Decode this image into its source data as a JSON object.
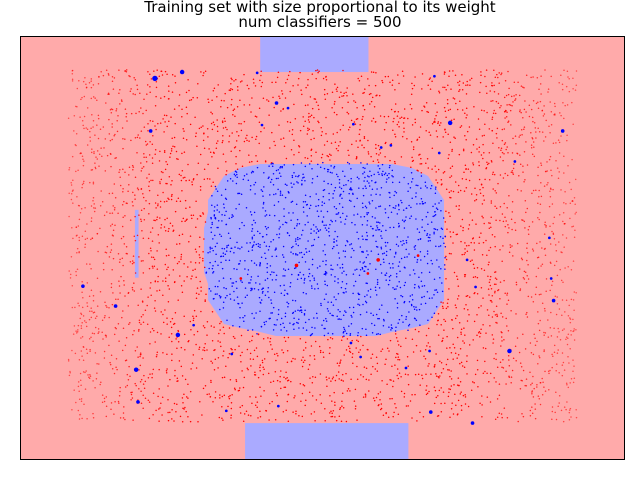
{
  "chart_data": {
    "type": "scatter",
    "title": "Training set with size proportional to its weight",
    "subtitle": "num classifiers = 500",
    "xlabel": "",
    "ylabel": "",
    "xlim": [
      0,
      1
    ],
    "ylim": [
      0,
      1
    ],
    "axes_visible": false,
    "grid": false,
    "legend": "none",
    "colors": {
      "background_class_red": "#ffaaaa",
      "background_class_blue": "#aaaaff",
      "point_red": "#ff0000",
      "point_blue": "#0000ff",
      "axes_frame": "#000000"
    },
    "decision_regions": [
      {
        "class": "blue",
        "shape": "rect",
        "x0": 0.397,
        "x1": 0.576,
        "y0": 0.915,
        "y1": 1.0
      },
      {
        "class": "blue",
        "shape": "rect",
        "x0": 0.372,
        "x1": 0.642,
        "y0": 0.0,
        "y1": 0.087
      },
      {
        "class": "blue",
        "shape": "blob",
        "cx": 0.505,
        "cy": 0.497,
        "rx": 0.198,
        "ry": 0.205
      },
      {
        "class": "blue",
        "shape": "rect",
        "x0": 0.19,
        "x1": 0.196,
        "y0": 0.43,
        "y1": 0.59
      }
    ],
    "series": [
      {
        "class": "red",
        "distribution": "uniform outside blue blob",
        "n_points": 3000,
        "seed": 7,
        "x_range": [
          0.08,
          0.92
        ],
        "y_range": [
          0.09,
          0.92
        ],
        "highlighted_points": [
          {
            "x": 0.457,
            "y": 0.459,
            "w": 4
          },
          {
            "x": 0.592,
            "y": 0.472,
            "w": 4
          },
          {
            "x": 0.575,
            "y": 0.44,
            "w": 3
          },
          {
            "x": 0.658,
            "y": 0.482,
            "w": 3
          },
          {
            "x": 0.365,
            "y": 0.428,
            "w": 3
          }
        ]
      },
      {
        "class": "blue",
        "distribution": "uniform inside blue blob",
        "n_points": 1200,
        "seed": 11,
        "highlighted_points": [
          {
            "x": 0.223,
            "y": 0.9,
            "w": 6
          },
          {
            "x": 0.268,
            "y": 0.915,
            "w": 5
          },
          {
            "x": 0.216,
            "y": 0.776,
            "w": 4
          },
          {
            "x": 0.711,
            "y": 0.795,
            "w": 5
          },
          {
            "x": 0.897,
            "y": 0.776,
            "w": 4
          },
          {
            "x": 0.424,
            "y": 0.842,
            "w": 4
          },
          {
            "x": 0.443,
            "y": 0.83,
            "w": 3
          },
          {
            "x": 0.685,
            "y": 0.905,
            "w": 3
          },
          {
            "x": 0.693,
            "y": 0.724,
            "w": 3
          },
          {
            "x": 0.818,
            "y": 0.704,
            "w": 3
          },
          {
            "x": 0.613,
            "y": 0.742,
            "w": 3
          },
          {
            "x": 0.597,
            "y": 0.737,
            "w": 3
          },
          {
            "x": 0.104,
            "y": 0.41,
            "w": 4
          },
          {
            "x": 0.158,
            "y": 0.363,
            "w": 4
          },
          {
            "x": 0.261,
            "y": 0.295,
            "w": 5
          },
          {
            "x": 0.287,
            "y": 0.318,
            "w": 3
          },
          {
            "x": 0.809,
            "y": 0.257,
            "w": 5
          },
          {
            "x": 0.192,
            "y": 0.213,
            "w": 5
          },
          {
            "x": 0.195,
            "y": 0.137,
            "w": 4
          },
          {
            "x": 0.882,
            "y": 0.376,
            "w": 4
          },
          {
            "x": 0.878,
            "y": 0.428,
            "w": 3
          },
          {
            "x": 0.875,
            "y": 0.524,
            "w": 3
          },
          {
            "x": 0.739,
            "y": 0.472,
            "w": 3
          },
          {
            "x": 0.753,
            "y": 0.408,
            "w": 3
          },
          {
            "x": 0.677,
            "y": 0.257,
            "w": 3
          },
          {
            "x": 0.638,
            "y": 0.217,
            "w": 3
          },
          {
            "x": 0.679,
            "y": 0.113,
            "w": 4
          },
          {
            "x": 0.748,
            "y": 0.087,
            "w": 4
          },
          {
            "x": 0.341,
            "y": 0.116,
            "w": 3
          },
          {
            "x": 0.427,
            "y": 0.127,
            "w": 3
          },
          {
            "x": 0.35,
            "y": 0.25,
            "w": 3
          },
          {
            "x": 0.547,
            "y": 0.276,
            "w": 3
          },
          {
            "x": 0.563,
            "y": 0.243,
            "w": 3
          },
          {
            "x": 0.392,
            "y": 0.913,
            "w": 3
          },
          {
            "x": 0.4,
            "y": 0.79,
            "w": 3
          },
          {
            "x": 0.551,
            "y": 0.792,
            "w": 3
          }
        ]
      }
    ]
  }
}
